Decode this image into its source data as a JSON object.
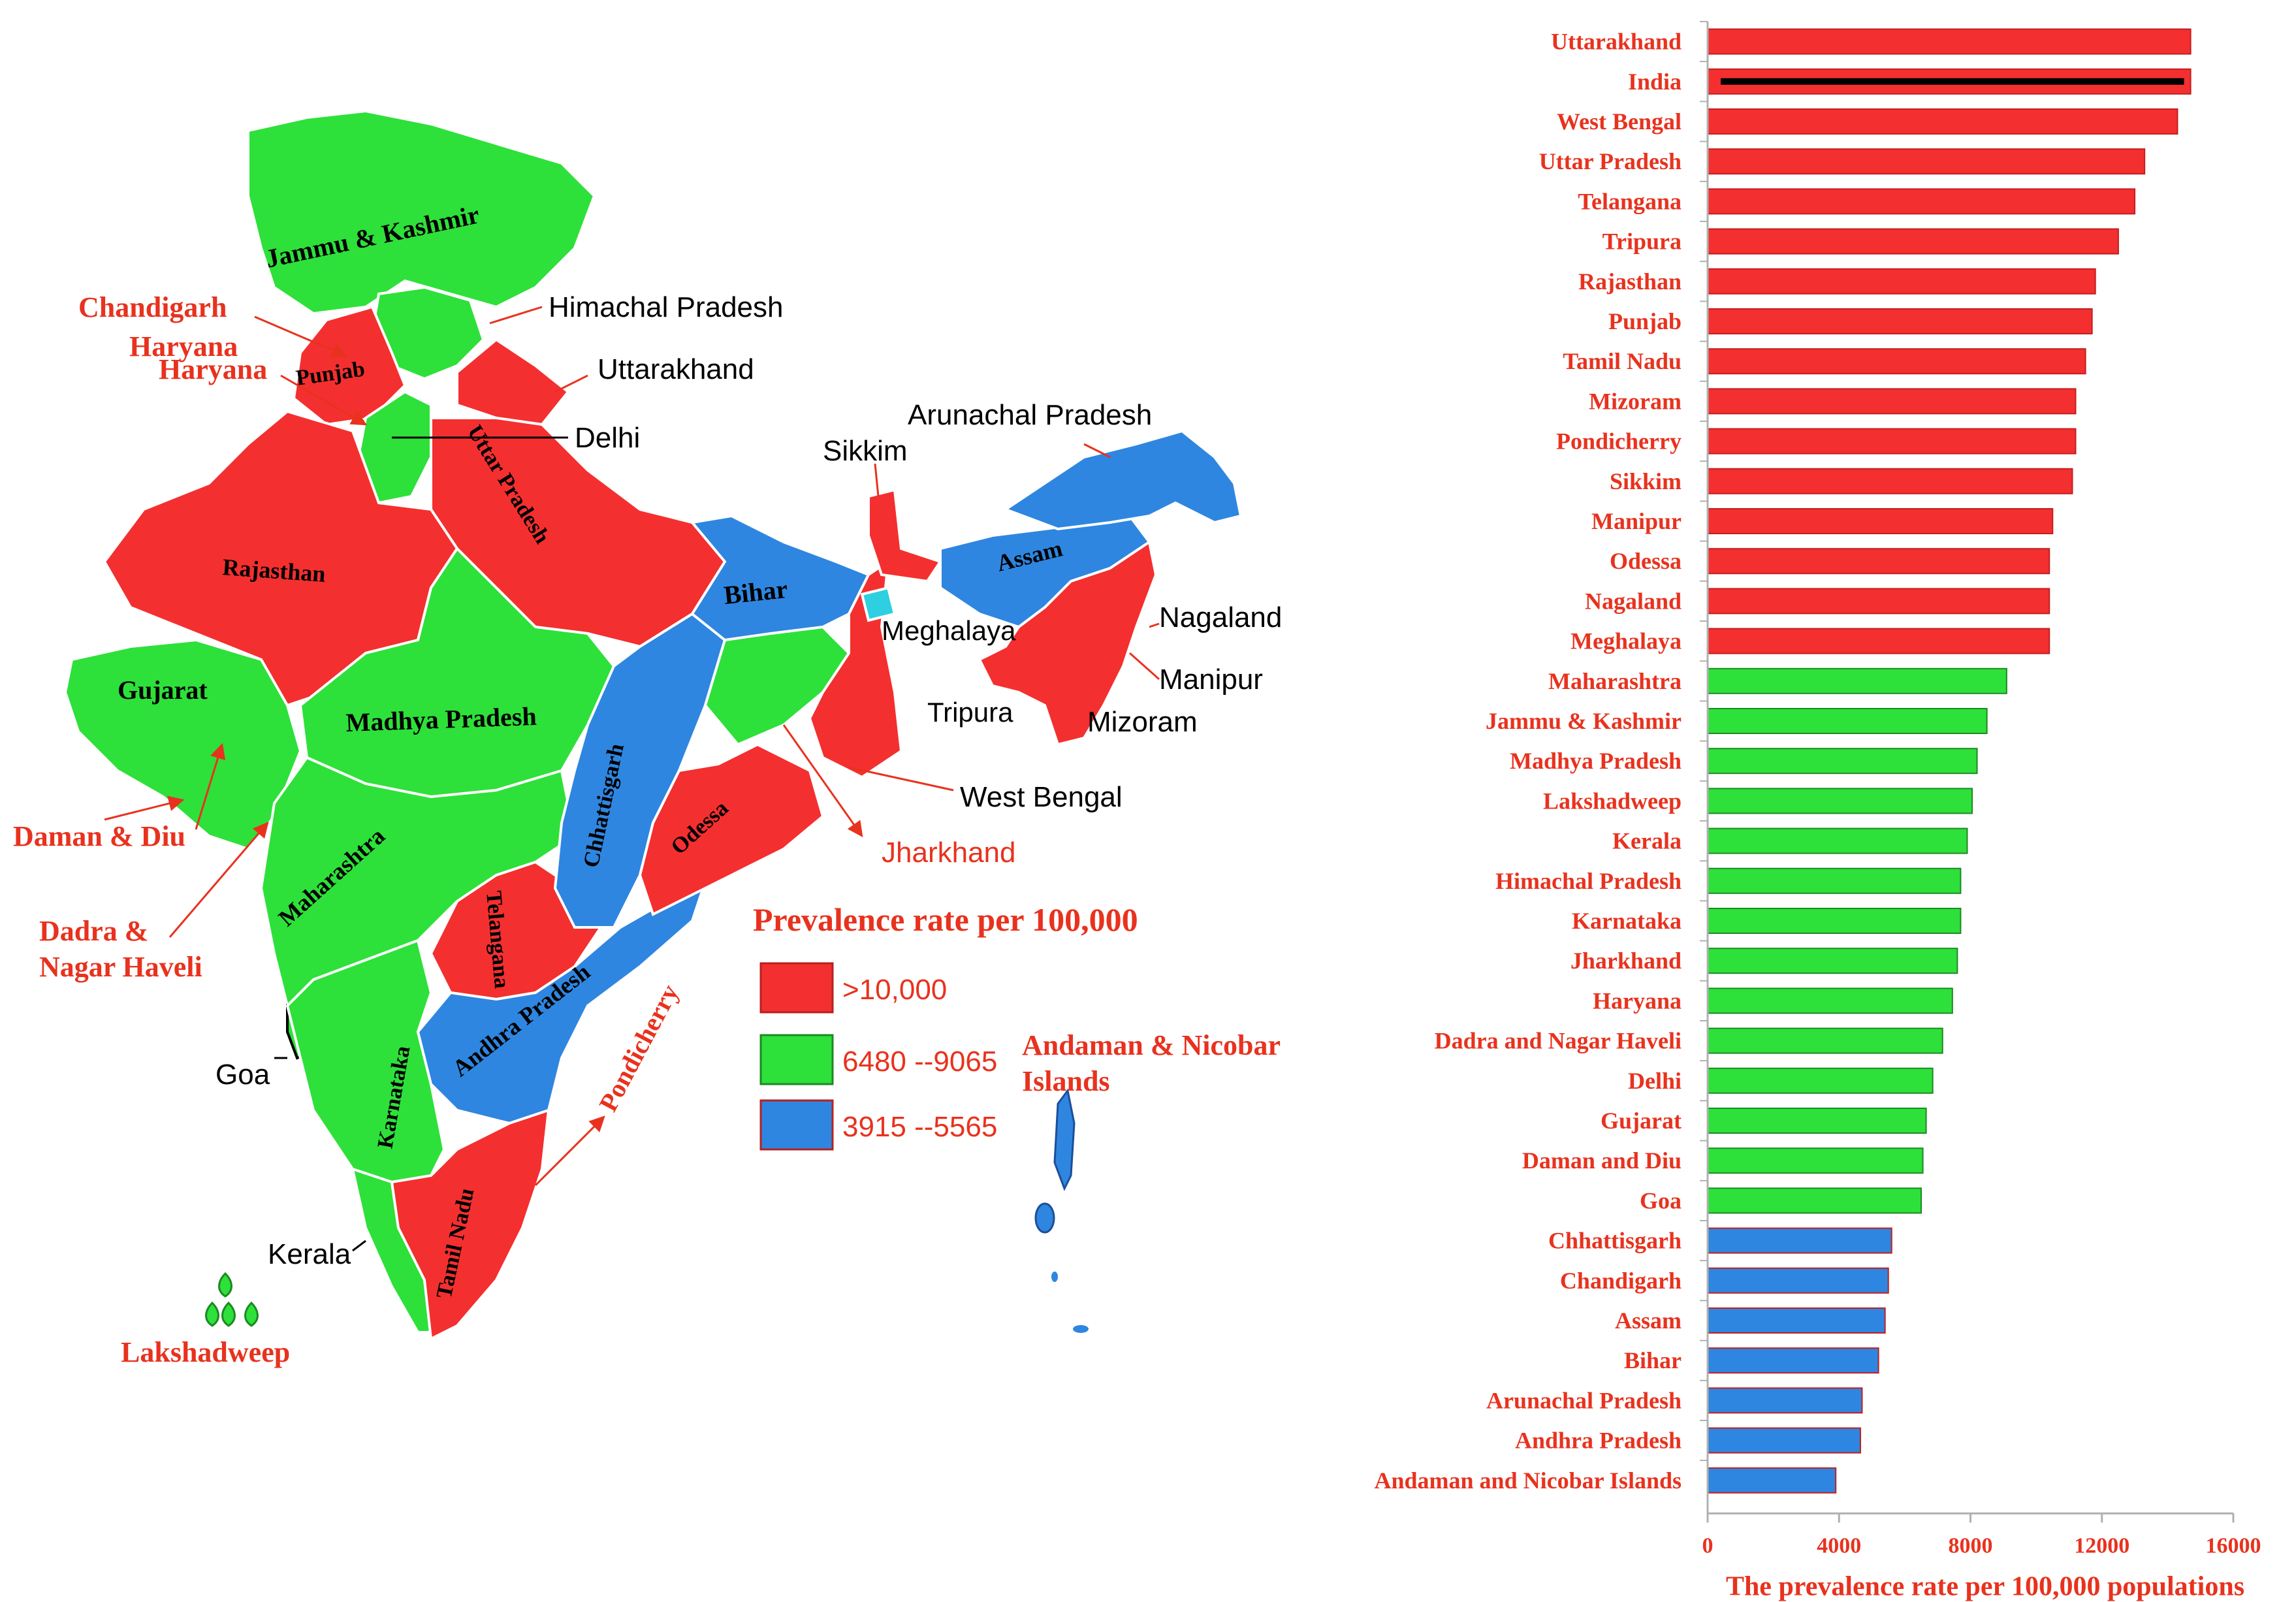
{
  "colors": {
    "high": "#f42f2f",
    "mid": "#2ee03a",
    "low": "#2e86e0",
    "label_red": "#e8321e",
    "outline": "#ffffff"
  },
  "map": {
    "region_labels": {
      "jk": "Jammu & Kashmir",
      "punjab": "Punjab",
      "rajasthan": "Rajasthan",
      "uttar_pradesh": "Uttar Pradesh",
      "gujarat": "Gujarat",
      "madhya_pradesh": "Madhya Pradesh",
      "maharashtra": "Maharashtra",
      "chhattisgarh": "Chhattisgarh",
      "odessa": "Odessa",
      "telangana": "Telangana",
      "andhra_pradesh": "Andhra Pradesh",
      "karnataka": "Karnataka",
      "tamil_nadu": "Tamil Nadu",
      "bihar": "Bihar",
      "assam": "Assam"
    },
    "callouts": {
      "himachal_pradesh": "Himachal Pradesh",
      "uttarakhand": "Uttarakhand",
      "delhi": "Delhi",
      "arunachal_pradesh": "Arunachal Pradesh",
      "sikkim": "Sikkim",
      "meghalaya": "Meghalaya",
      "nagaland": "Nagaland",
      "manipur": "Manipur",
      "tripura": "Tripura",
      "mizoram": "Mizoram",
      "west_bengal": "West Bengal",
      "goa": "Goa",
      "kerala": "Kerala",
      "chandigarh": "Chandigarh",
      "haryana_1": "Haryana",
      "haryana_2": "Haryana",
      "daman_diu": "Daman & Diu",
      "dadra_1": "Dadra &",
      "dadra_2": "Nagar Haveli",
      "jharkhand": "Jharkhand",
      "pondicherry": "Pondicherry",
      "andaman_1": "Andaman & Nicobar",
      "andaman_2": "Islands",
      "lakshadweep": "Lakshadweep"
    },
    "legend": {
      "title": "Prevalence rate per 100,000",
      "items": [
        {
          "label": ">10,000",
          "color": "#f42f2f"
        },
        {
          "label": "6480 --9065",
          "color": "#2ee03a"
        },
        {
          "label": "3915 --5565",
          "color": "#2e86e0"
        }
      ]
    }
  },
  "chart_data": {
    "type": "bar",
    "orientation": "horizontal",
    "xlabel": "The prevalence rate per 100,000 populations",
    "xlim": [
      0,
      16000
    ],
    "xticks": [
      "0",
      "4000",
      "8000",
      "12000",
      "16000"
    ],
    "categories": [
      "Uttarakhand",
      "India",
      "West Bengal",
      "Uttar Pradesh",
      "Telangana",
      "Tripura",
      "Rajasthan",
      "Punjab",
      "Tamil Nadu",
      "Mizoram",
      "Pondicherry",
      "Sikkim",
      "Manipur",
      "Odessa",
      "Nagaland",
      "Meghalaya",
      "Maharashtra",
      "Jammu & Kashmir",
      "Madhya Pradesh",
      "Lakshadweep",
      "Kerala",
      "Himachal Pradesh",
      "Karnataka",
      "Jharkhand",
      "Haryana",
      "Dadra and Nagar Haveli",
      "Delhi",
      "Gujarat",
      "Daman and Diu",
      "Goa",
      "Chhattisgarh",
      "Chandigarh",
      "Assam",
      "Bihar",
      "Arunachal Pradesh",
      "Andhra Pradesh",
      "Andaman and Nicobar Islands"
    ],
    "values": [
      14700,
      14700,
      14300,
      13300,
      13000,
      12500,
      11800,
      11700,
      11500,
      11200,
      11200,
      11100,
      10500,
      10400,
      10400,
      10400,
      9100,
      8500,
      8200,
      8050,
      7900,
      7700,
      7700,
      7600,
      7450,
      7150,
      6850,
      6650,
      6550,
      6500,
      5600,
      5500,
      5400,
      5200,
      4700,
      4650,
      3900
    ],
    "bar_colors": [
      "high",
      "high",
      "high",
      "high",
      "high",
      "high",
      "high",
      "high",
      "high",
      "high",
      "high",
      "high",
      "high",
      "high",
      "high",
      "high",
      "mid",
      "mid",
      "mid",
      "mid",
      "mid",
      "mid",
      "mid",
      "mid",
      "mid",
      "mid",
      "mid",
      "mid",
      "mid",
      "mid",
      "low",
      "low",
      "low",
      "low",
      "low",
      "low",
      "low"
    ],
    "highlight_category": "India",
    "grid": false,
    "legend": "none"
  }
}
